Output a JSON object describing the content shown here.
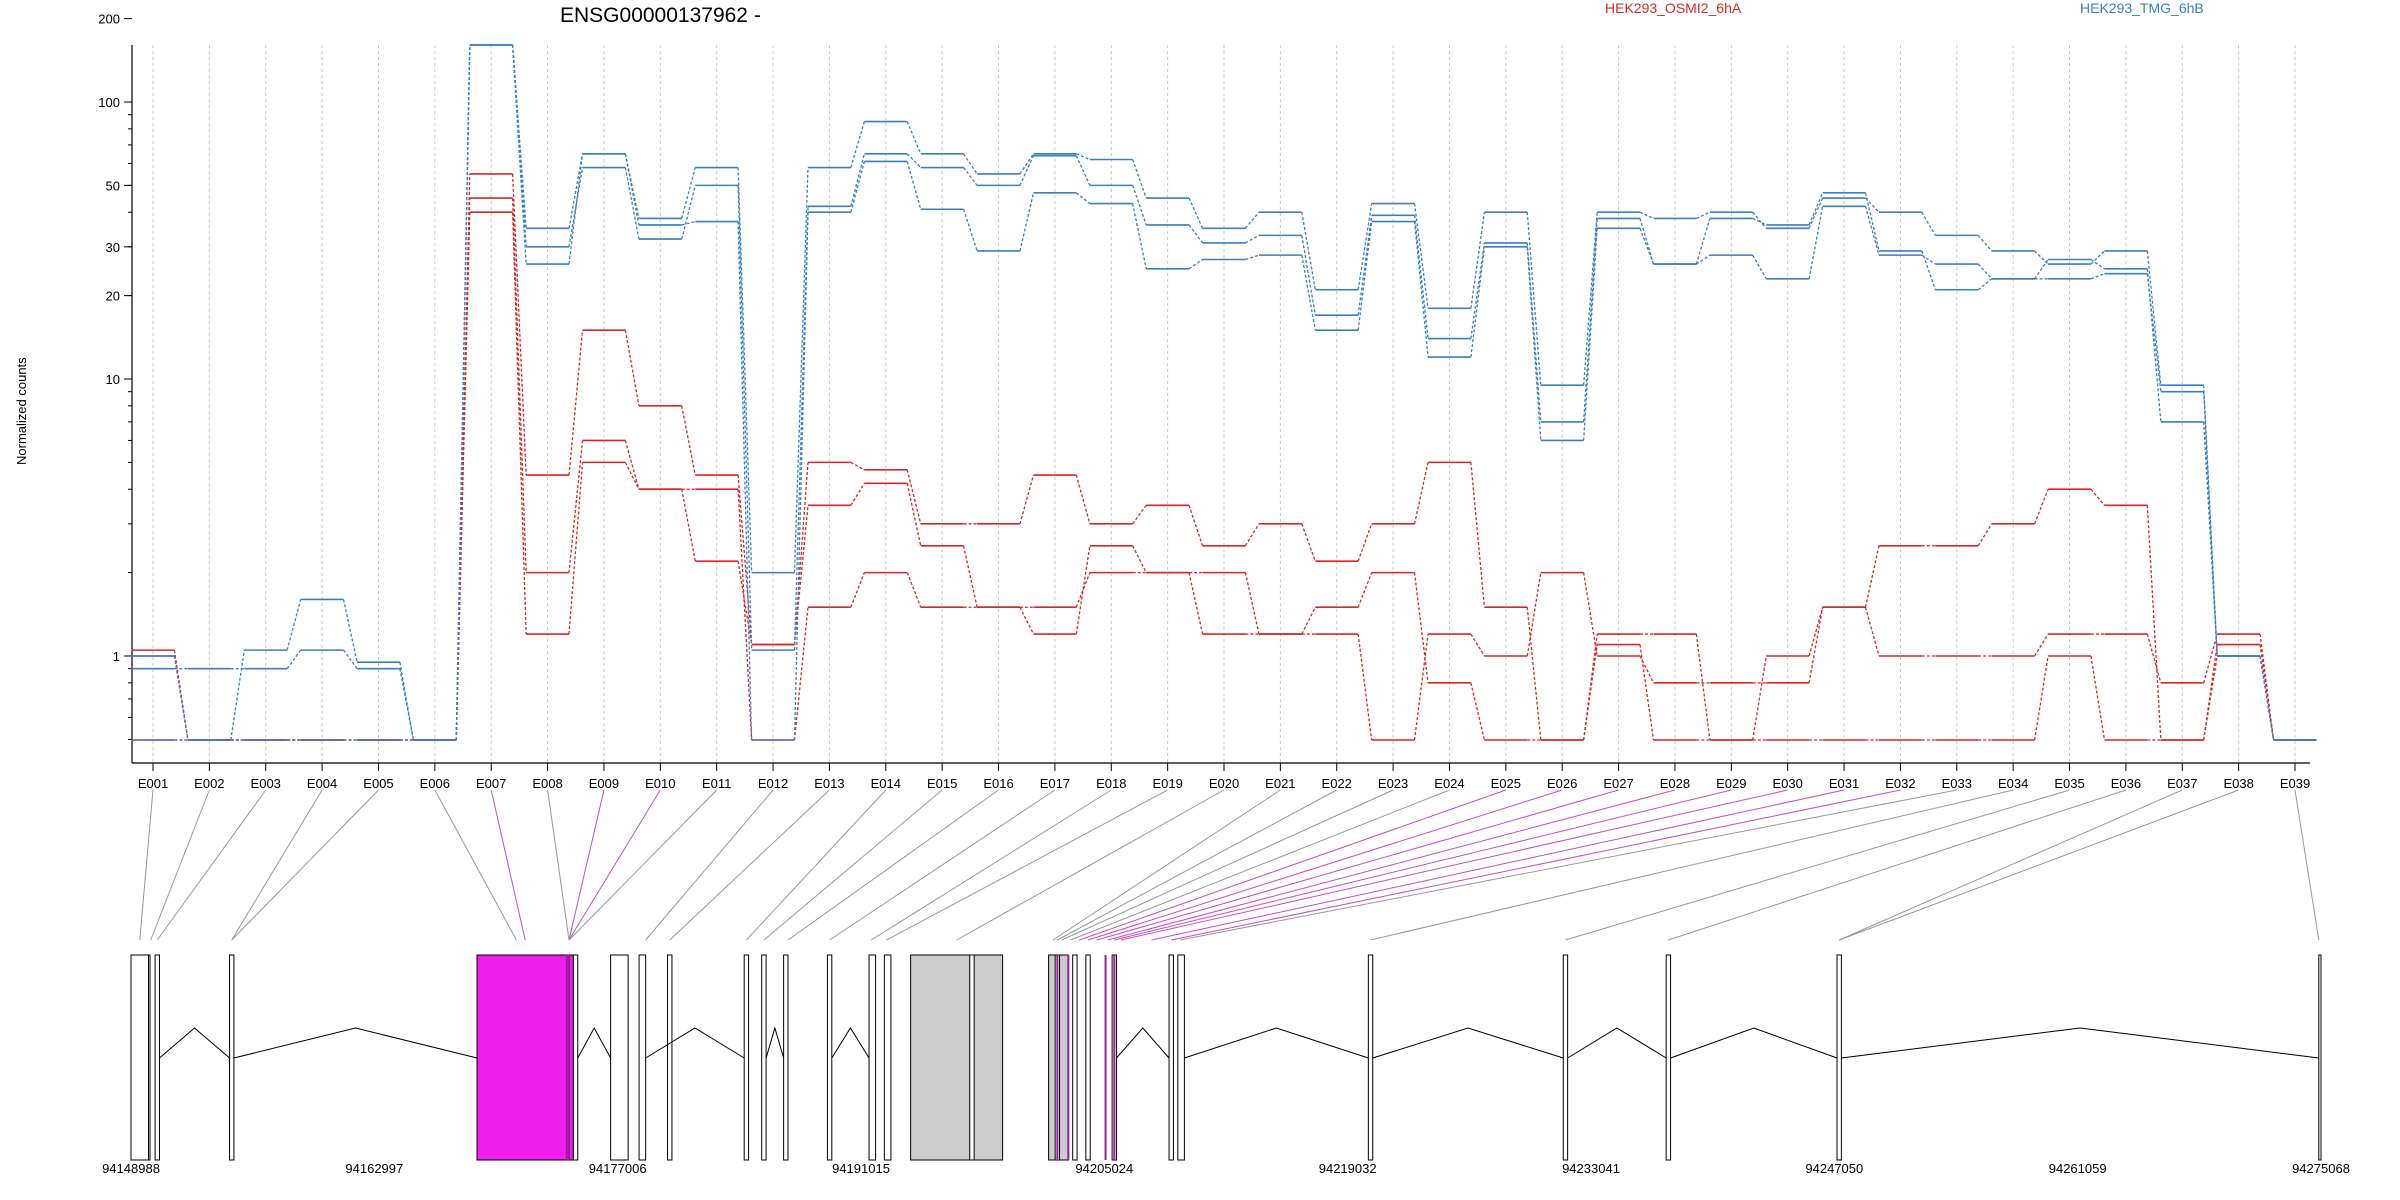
{
  "chart_data": {
    "type": "line",
    "title": "ENSG00000137962 -",
    "ylabel": "Normalized counts",
    "y_scale": "log",
    "y_ticks": [
      1,
      10,
      20,
      30,
      50,
      100,
      200
    ],
    "grid": true,
    "legend_placement": "top-right",
    "categories": [
      "E001",
      "E002",
      "E003",
      "E004",
      "E005",
      "E006",
      "E007",
      "E008",
      "E009",
      "E010",
      "E011",
      "E012",
      "E013",
      "E014",
      "E015",
      "E016",
      "E017",
      "E018",
      "E019",
      "E020",
      "E021",
      "E022",
      "E023",
      "E024",
      "E025",
      "E026",
      "E027",
      "E028",
      "E029",
      "E030",
      "E031",
      "E032",
      "E033",
      "E034",
      "E035",
      "E036",
      "E037",
      "E038",
      "E039"
    ],
    "series": [
      {
        "name": "HEK293_OSMI2_6hA",
        "color": "#d62728",
        "values": [
          1.05,
          0.4,
          0.4,
          0.4,
          0.4,
          0.4,
          55,
          4.5,
          15,
          8,
          4.5,
          1.1,
          5,
          4.7,
          3,
          3,
          4.5,
          3,
          3.5,
          2.5,
          3,
          2.2,
          3,
          5,
          1.5,
          0.4,
          1.2,
          1.2,
          0.4,
          1.0,
          1.5,
          1.0,
          1.0,
          1.0,
          1.2,
          1.2,
          0.8,
          1.2,
          0.4
        ]
      },
      {
        "name": "",
        "color": "#d62728",
        "values": [
          1.0,
          0.4,
          0.4,
          0.4,
          0.4,
          0.4,
          40,
          1.2,
          5,
          4,
          4,
          0.4,
          1.5,
          2,
          1.5,
          1.5,
          1.5,
          2,
          2,
          1.2,
          1.2,
          1.2,
          0.4,
          1.2,
          1.0,
          2.0,
          1.0,
          0.8,
          0.8,
          0.8,
          1.5,
          2.5,
          2.5,
          3.0,
          4.0,
          3.5,
          0.4,
          1.0,
          0.4
        ]
      },
      {
        "name": "",
        "color": "#d62728",
        "values": [
          0.4,
          0.4,
          0.4,
          0.4,
          0.4,
          0.4,
          45,
          2.0,
          6,
          4,
          2.2,
          1.1,
          3.5,
          4.2,
          2.5,
          1.5,
          1.2,
          2.5,
          2.0,
          2.0,
          1.2,
          1.5,
          2.0,
          0.8,
          0.4,
          0.4,
          1.1,
          0.4,
          0.4,
          0.4,
          0.4,
          0.4,
          0.4,
          0.4,
          1.0,
          0.4,
          0.4,
          1.1,
          0.4
        ]
      },
      {
        "name": "HEK293_TMG_6hB",
        "color": "#3a7fc0",
        "values": [
          1.0,
          0.4,
          1.05,
          1.6,
          0.95,
          0.4,
          215,
          35,
          65,
          38,
          58,
          2.0,
          58,
          85,
          65,
          55,
          65,
          62,
          45,
          35,
          40,
          21,
          43,
          18,
          40,
          9.5,
          40,
          38,
          40,
          35,
          45,
          40,
          33,
          29,
          26,
          29,
          9.5,
          1.0,
          0.4
        ]
      },
      {
        "name": "",
        "color": "#3a7fc0",
        "values": [
          0.9,
          0.9,
          0.9,
          1.05,
          0.9,
          0.4,
          210,
          30,
          58,
          32,
          50,
          1.05,
          42,
          65,
          58,
          50,
          64,
          50,
          36,
          31,
          33,
          17,
          39,
          14,
          31,
          7.0,
          38,
          26,
          28,
          23,
          42,
          28,
          26,
          23,
          27,
          25,
          7.0,
          1.0,
          0.4
        ]
      },
      {
        "name": "",
        "color": "#3a7fc0",
        "values": [
          0.4,
          0.4,
          0.4,
          0.4,
          0.4,
          0.4,
          205,
          26,
          65,
          36,
          37,
          0.4,
          40,
          61,
          41,
          29,
          47,
          43,
          25,
          27,
          28,
          15,
          37,
          12,
          30,
          6.0,
          35,
          26,
          38,
          36,
          47,
          29,
          21,
          23,
          23,
          24,
          9.0,
          1.0,
          0.4
        ]
      }
    ],
    "gene_model": {
      "coordinate_ticks": [
        "94148988",
        "94162997",
        "94177006",
        "94191015",
        "94205024",
        "94219032",
        "94233041",
        "94247050",
        "94261059",
        "94275068"
      ],
      "highlight_color": "#ef1eef"
    }
  }
}
